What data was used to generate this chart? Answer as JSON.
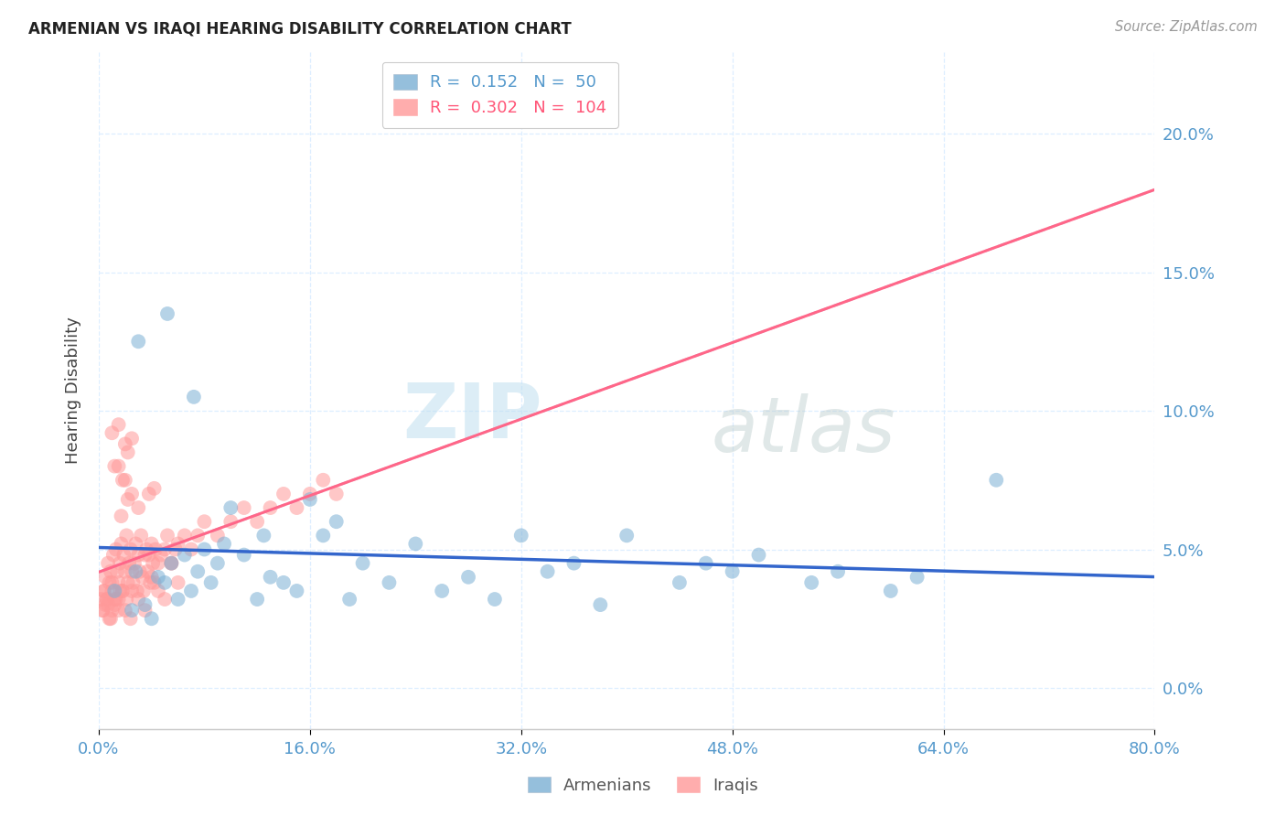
{
  "title": "ARMENIAN VS IRAQI HEARING DISABILITY CORRELATION CHART",
  "source": "Source: ZipAtlas.com",
  "ylabel": "Hearing Disability",
  "ytick_values": [
    0.0,
    5.0,
    10.0,
    15.0,
    20.0
  ],
  "xtick_values": [
    0.0,
    16.0,
    32.0,
    48.0,
    64.0,
    80.0
  ],
  "xlim": [
    0.0,
    80.0
  ],
  "ylim": [
    -1.5,
    23.0
  ],
  "watermark_zip": "ZIP",
  "watermark_atlas": "atlas",
  "legend_armenians": "Armenians",
  "legend_iraqis": "Iraqis",
  "legend_armenians_R": "0.152",
  "legend_armenians_N": "50",
  "legend_iraqis_R": "0.302",
  "legend_iraqis_N": "104",
  "color_armenians": "#7BAFD4",
  "color_iraqis": "#FF9999",
  "color_armenians_dark": "#4477BB",
  "color_iraqis_dark": "#FF5577",
  "trendline_armenians_color": "#3366CC",
  "trendline_iraqis_color": "#FF6688",
  "trendline_iraqis_dashed_color": "#CCBBDD",
  "axis_label_color": "#5599CC",
  "grid_color": "#DDEEFF",
  "armenians_x": [
    1.2,
    2.5,
    2.8,
    3.5,
    4.0,
    4.5,
    5.0,
    5.5,
    6.0,
    6.5,
    7.0,
    7.5,
    8.0,
    8.5,
    9.0,
    9.5,
    10.0,
    11.0,
    12.0,
    12.5,
    13.0,
    14.0,
    15.0,
    16.0,
    17.0,
    18.0,
    19.0,
    20.0,
    22.0,
    24.0,
    26.0,
    28.0,
    30.0,
    32.0,
    34.0,
    36.0,
    38.0,
    40.0,
    44.0,
    46.0,
    48.0,
    50.0,
    54.0,
    56.0,
    60.0,
    62.0,
    68.0,
    3.0,
    5.2,
    7.2
  ],
  "armenians_y": [
    3.5,
    2.8,
    4.2,
    3.0,
    2.5,
    4.0,
    3.8,
    4.5,
    3.2,
    4.8,
    3.5,
    4.2,
    5.0,
    3.8,
    4.5,
    5.2,
    6.5,
    4.8,
    3.2,
    5.5,
    4.0,
    3.8,
    3.5,
    6.8,
    5.5,
    6.0,
    3.2,
    4.5,
    3.8,
    5.2,
    3.5,
    4.0,
    3.2,
    5.5,
    4.2,
    4.5,
    3.0,
    5.5,
    3.8,
    4.5,
    4.2,
    4.8,
    3.8,
    4.2,
    3.5,
    4.0,
    7.5,
    12.5,
    13.5,
    10.5
  ],
  "iraqis_x": [
    0.2,
    0.3,
    0.4,
    0.5,
    0.6,
    0.7,
    0.8,
    0.9,
    1.0,
    1.1,
    1.2,
    1.3,
    1.4,
    1.5,
    1.6,
    1.7,
    1.8,
    1.9,
    2.0,
    2.1,
    2.2,
    2.3,
    2.4,
    2.5,
    2.6,
    2.7,
    2.8,
    2.9,
    3.0,
    3.1,
    3.2,
    3.3,
    3.4,
    3.5,
    3.6,
    3.7,
    3.8,
    3.9,
    4.0,
    4.1,
    4.2,
    4.3,
    4.5,
    4.7,
    5.0,
    5.2,
    5.5,
    5.8,
    6.0,
    6.5,
    7.0,
    7.5,
    8.0,
    9.0,
    10.0,
    11.0,
    12.0,
    13.0,
    14.0,
    15.0,
    16.0,
    17.0,
    18.0,
    2.0,
    1.5,
    1.8,
    1.2,
    2.2,
    0.5,
    0.8,
    1.0,
    1.5,
    2.0,
    2.5,
    3.0,
    3.5,
    4.0,
    4.5,
    5.0,
    5.5,
    6.0,
    1.0,
    1.5,
    2.0,
    2.5,
    0.3,
    0.6,
    0.9,
    1.2,
    1.5,
    1.8,
    2.1,
    2.4,
    0.4,
    0.7,
    1.0,
    1.3,
    1.6,
    2.5,
    3.0,
    2.2,
    1.7,
    4.2,
    3.8
  ],
  "iraqis_y": [
    3.2,
    2.8,
    3.5,
    4.0,
    3.2,
    4.5,
    3.8,
    4.2,
    3.5,
    4.8,
    3.2,
    5.0,
    4.2,
    3.8,
    4.5,
    5.2,
    3.5,
    4.8,
    4.2,
    5.5,
    3.8,
    4.5,
    5.0,
    4.2,
    3.8,
    4.5,
    5.2,
    3.5,
    4.8,
    4.2,
    5.5,
    4.0,
    3.5,
    4.8,
    5.0,
    4.2,
    4.8,
    3.8,
    5.2,
    4.5,
    3.8,
    5.0,
    4.5,
    4.8,
    5.0,
    5.5,
    4.5,
    5.0,
    5.2,
    5.5,
    5.0,
    5.5,
    6.0,
    5.5,
    6.0,
    6.5,
    6.0,
    6.5,
    7.0,
    6.5,
    7.0,
    7.5,
    7.0,
    7.5,
    8.0,
    7.5,
    8.0,
    8.5,
    3.0,
    2.5,
    3.8,
    3.2,
    2.8,
    3.5,
    3.2,
    2.8,
    4.0,
    3.5,
    3.2,
    4.5,
    3.8,
    9.2,
    9.5,
    8.8,
    9.0,
    2.8,
    3.2,
    2.5,
    3.0,
    2.8,
    3.5,
    3.2,
    2.5,
    3.5,
    3.0,
    2.8,
    3.2,
    3.5,
    7.0,
    6.5,
    6.8,
    6.2,
    7.2,
    7.0
  ]
}
